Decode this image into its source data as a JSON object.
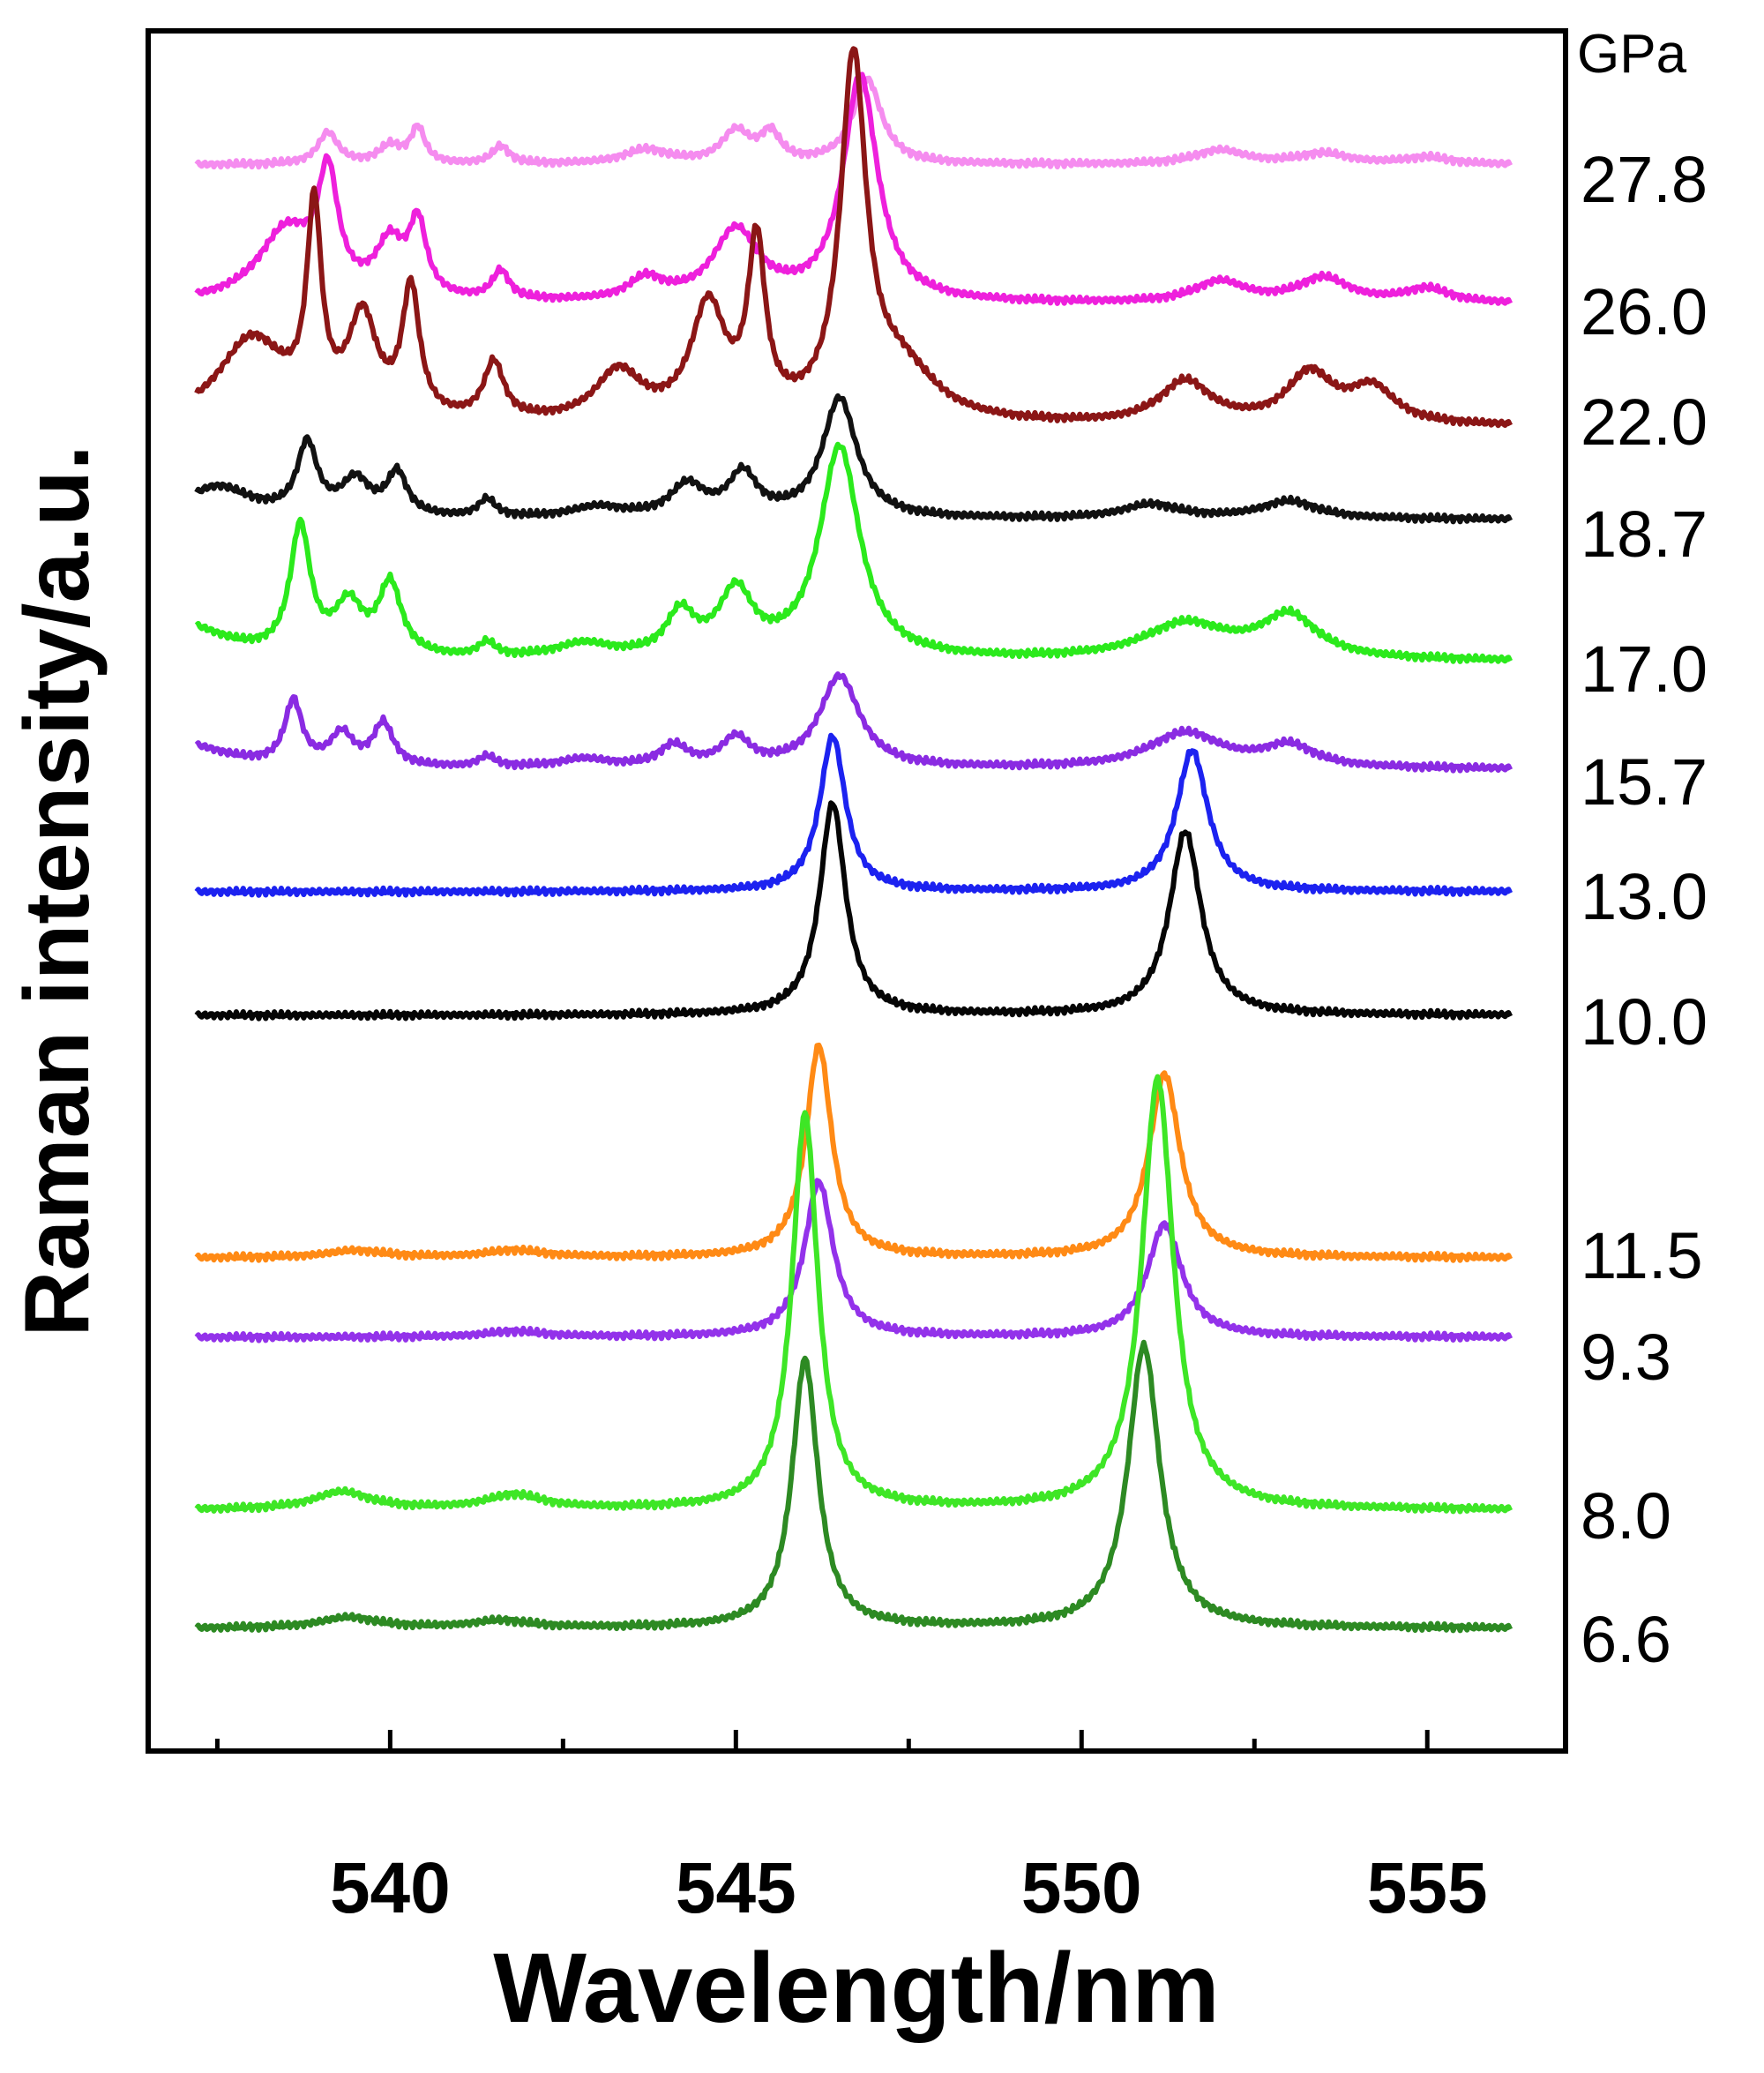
{
  "chart_data": {
    "type": "line",
    "title": "",
    "xlabel": "Wavelength/nm",
    "ylabel": "Raman intensity/a.u.",
    "xlim": [
      536.5,
      557.0
    ],
    "xticks": [
      540,
      545,
      550,
      555
    ],
    "xtick_labels": [
      "540",
      "545",
      "550",
      "555"
    ],
    "pressure_unit": "GPa",
    "legend": "pressure labels at right end of each trace",
    "series": [
      {
        "name": "27.8",
        "color": "#f58cef",
        "baseline": 0.2,
        "peaks": [
          [
            539.1,
            0.45,
            0.35
          ],
          [
            540.0,
            0.25,
            0.4
          ],
          [
            540.4,
            0.5,
            0.25
          ],
          [
            541.6,
            0.25,
            0.3
          ],
          [
            543.7,
            0.2,
            0.8
          ],
          [
            545.0,
            0.45,
            0.5
          ],
          [
            545.5,
            0.4,
            0.35
          ],
          [
            546.9,
            1.2,
            0.5
          ],
          [
            552.0,
            0.2,
            0.9
          ],
          [
            553.5,
            0.15,
            0.9
          ],
          [
            555.0,
            0.1,
            0.8
          ]
        ]
      },
      {
        "name": "26.0",
        "color": "#ee20dc",
        "baseline": 0.1,
        "peaks": [
          [
            538.5,
            1.0,
            1.0
          ],
          [
            539.1,
            1.6,
            0.35
          ],
          [
            540.0,
            0.75,
            0.5
          ],
          [
            540.4,
            1.0,
            0.3
          ],
          [
            541.6,
            0.4,
            0.3
          ],
          [
            543.7,
            0.3,
            0.6
          ],
          [
            545.0,
            1.0,
            0.8
          ],
          [
            546.8,
            3.2,
            0.6
          ],
          [
            552.0,
            0.3,
            0.9
          ],
          [
            553.5,
            0.35,
            0.9
          ],
          [
            555.0,
            0.2,
            0.8
          ]
        ]
      },
      {
        "name": "22.0",
        "color": "#8b1616",
        "baseline": 0.1,
        "peaks": [
          [
            538.0,
            1.2,
            1.2
          ],
          [
            538.9,
            2.8,
            0.25
          ],
          [
            539.6,
            1.4,
            0.5
          ],
          [
            540.3,
            1.8,
            0.3
          ],
          [
            541.5,
            0.8,
            0.35
          ],
          [
            543.3,
            0.7,
            0.8
          ],
          [
            544.6,
            1.6,
            0.6
          ],
          [
            545.3,
            2.4,
            0.3
          ],
          [
            546.7,
            5.0,
            0.45
          ],
          [
            547.4,
            0.7,
            1.2
          ],
          [
            551.5,
            0.6,
            0.9
          ],
          [
            553.3,
            0.7,
            0.8
          ],
          [
            554.2,
            0.5,
            0.8
          ]
        ]
      },
      {
        "name": "18.7",
        "color": "#111111",
        "baseline": 0.1,
        "peaks": [
          [
            537.5,
            0.45,
            1.2
          ],
          [
            538.8,
            1.0,
            0.35
          ],
          [
            539.5,
            0.5,
            0.5
          ],
          [
            540.1,
            0.6,
            0.35
          ],
          [
            541.4,
            0.25,
            0.3
          ],
          [
            543.0,
            0.15,
            0.9
          ],
          [
            544.3,
            0.45,
            0.6
          ],
          [
            545.1,
            0.6,
            0.5
          ],
          [
            546.5,
            1.7,
            0.6
          ],
          [
            551.0,
            0.2,
            1.0
          ],
          [
            553.0,
            0.25,
            1.0
          ]
        ]
      },
      {
        "name": "17.0",
        "color": "#2bea1c",
        "baseline": 0.1,
        "peaks": [
          [
            537.0,
            0.5,
            1.5
          ],
          [
            538.7,
            1.8,
            0.35
          ],
          [
            539.4,
            0.7,
            0.5
          ],
          [
            540.0,
            1.0,
            0.4
          ],
          [
            541.4,
            0.2,
            0.3
          ],
          [
            542.8,
            0.2,
            1.0
          ],
          [
            544.2,
            0.6,
            0.5
          ],
          [
            545.0,
            0.9,
            0.6
          ],
          [
            546.5,
            3.0,
            0.7
          ],
          [
            551.5,
            0.5,
            1.5
          ],
          [
            553.0,
            0.6,
            1.0
          ]
        ]
      },
      {
        "name": "15.7",
        "color": "#8a2be2",
        "baseline": 0.1,
        "peaks": [
          [
            537.0,
            0.35,
            1.5
          ],
          [
            538.6,
            0.9,
            0.3
          ],
          [
            539.3,
            0.45,
            0.4
          ],
          [
            539.9,
            0.6,
            0.35
          ],
          [
            541.4,
            0.15,
            0.3
          ],
          [
            542.8,
            0.12,
            0.9
          ],
          [
            544.1,
            0.3,
            0.5
          ],
          [
            545.0,
            0.4,
            0.5
          ],
          [
            546.5,
            1.3,
            0.7
          ],
          [
            551.5,
            0.5,
            1.3
          ],
          [
            553.0,
            0.3,
            0.9
          ]
        ]
      },
      {
        "name": "13.0",
        "color": "#1c22f0",
        "baseline": 0.05,
        "peaks": [
          [
            546.4,
            2.2,
            0.45
          ],
          [
            551.6,
            2.0,
            0.55
          ]
        ]
      },
      {
        "name": "10.0",
        "color": "#050505",
        "baseline": 0.05,
        "peaks": [
          [
            546.4,
            3.0,
            0.45
          ],
          [
            551.5,
            2.6,
            0.55
          ]
        ]
      },
      {
        "name": "11.5",
        "color": "#ff8a15",
        "baseline": 0.05,
        "peaks": [
          [
            539.5,
            0.1,
            1.0
          ],
          [
            541.8,
            0.1,
            1.0
          ],
          [
            546.2,
            3.0,
            0.45
          ],
          [
            551.2,
            2.6,
            0.55
          ]
        ]
      },
      {
        "name": "9.3",
        "color": "#9332ea",
        "baseline": 0.05,
        "peaks": [
          [
            541.8,
            0.08,
            1.0
          ],
          [
            546.2,
            2.2,
            0.5
          ],
          [
            551.2,
            1.6,
            0.6
          ]
        ]
      },
      {
        "name": "8.0",
        "color": "#3ee626",
        "baseline": 0.1,
        "peaks": [
          [
            539.3,
            0.25,
            1.0
          ],
          [
            541.8,
            0.2,
            1.0
          ],
          [
            546.0,
            5.6,
            0.45
          ],
          [
            551.1,
            6.1,
            0.55
          ]
        ]
      },
      {
        "name": "6.6",
        "color": "#2d8a23",
        "baseline": 0.05,
        "peaks": [
          [
            539.4,
            0.15,
            1.0
          ],
          [
            541.6,
            0.1,
            1.0
          ],
          [
            546.0,
            3.8,
            0.45
          ],
          [
            550.9,
            4.0,
            0.55
          ]
        ]
      }
    ]
  }
}
